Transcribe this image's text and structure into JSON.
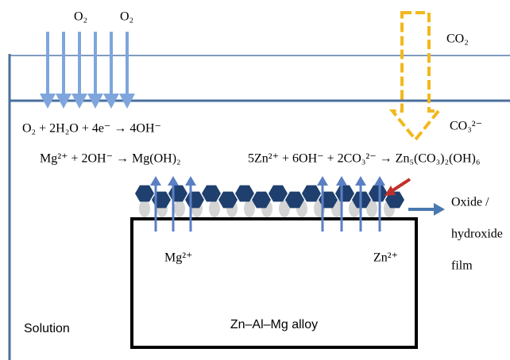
{
  "labels": {
    "o2_left": "O₂",
    "o2_right": "O₂",
    "co2": "CO₂",
    "co3": "CO₃²⁻",
    "oxide_1": "Oxide /",
    "oxide_2": "hydroxide",
    "oxide_3": "film",
    "mg_ion": "Mg²⁺",
    "zn_ion": "Zn²⁺",
    "alloy": "Zn–Al–Mg alloy",
    "solution": "Solution"
  },
  "equations": {
    "oxygen": "O₂ + 2H₂O + 4e⁻ → 4OH⁻",
    "magnesium": "Mg²⁺ + 2OH⁻ → Mg(OH)₂",
    "zinc": "5Zn²⁺ + 6OH⁻ + 2CO₃²⁻ → Zn₅(CO₃)₂(OH)₆"
  }
}
